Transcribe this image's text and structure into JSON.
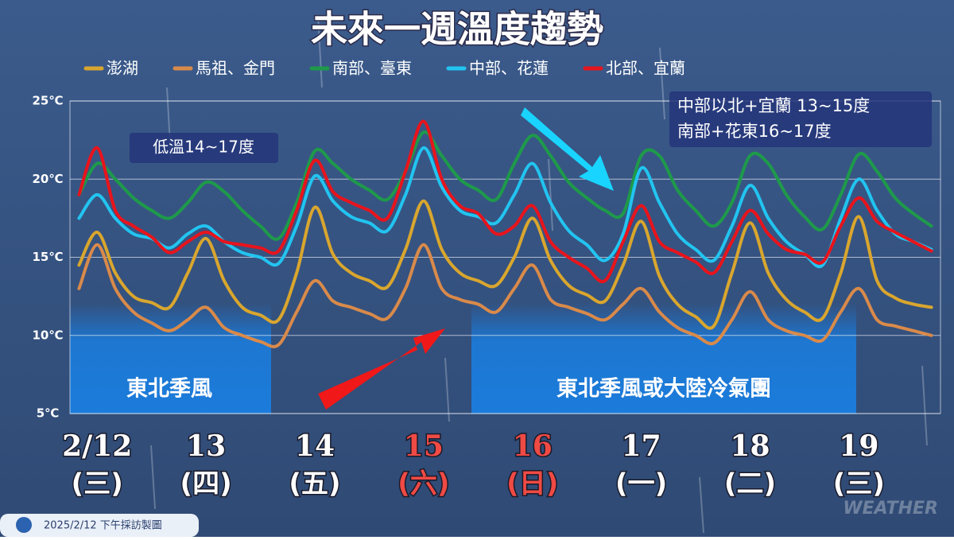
{
  "chart_data": {
    "type": "line",
    "title": "未來一週溫度趨勢",
    "categories": [
      null,
      "2/12",
      null,
      null,
      null,
      null,
      null,
      "13",
      null,
      null,
      null,
      null,
      null,
      "14",
      null,
      null,
      null,
      null,
      null,
      "15",
      null,
      null,
      null,
      null,
      null,
      "16",
      null,
      null,
      null,
      null,
      null,
      "17",
      null,
      null,
      null,
      null,
      null,
      "18",
      null,
      null,
      null,
      null,
      null,
      "19",
      null,
      null,
      null,
      null
    ],
    "weekdays": [
      null,
      "(三)",
      null,
      null,
      null,
      null,
      null,
      "(四)",
      null,
      null,
      null,
      null,
      null,
      "(五)",
      null,
      null,
      null,
      null,
      null,
      "(六)",
      null,
      null,
      null,
      null,
      null,
      "(日)",
      null,
      null,
      null,
      null,
      null,
      "(一)",
      null,
      null,
      null,
      null,
      null,
      "(二)",
      null,
      null,
      null,
      null,
      null,
      "(三)",
      null,
      null,
      null,
      null
    ],
    "highlight_indices": [
      19,
      25
    ],
    "highlight_color": "#ef4a44",
    "series": [
      {
        "name": "澎湖",
        "color": "#d9a62e",
        "values": [
          14.5,
          16.6,
          14,
          12.5,
          12.1,
          11.8,
          14,
          16.2,
          13.5,
          11.8,
          11.3,
          11,
          14,
          18.2,
          15.2,
          14,
          13.5,
          13.1,
          15.5,
          18.6,
          15.5,
          14,
          13.5,
          13.2,
          15,
          17.5,
          14.8,
          13.2,
          12.6,
          12.2,
          14.5,
          17.3,
          13.8,
          12,
          11.2,
          10.6,
          14,
          17.2,
          14,
          12.3,
          11.5,
          11.1,
          14,
          17.6,
          13.5,
          12.4,
          12,
          11.8
        ]
      },
      {
        "name": "馬祖、金門",
        "color": "#d98a4a",
        "values": [
          13,
          15.8,
          13,
          11.5,
          10.8,
          10.3,
          11,
          11.8,
          10.5,
          10,
          9.6,
          9.4,
          11.5,
          13.5,
          12.2,
          11.8,
          11.4,
          11.1,
          13,
          15.8,
          13,
          12.3,
          12,
          11.5,
          13,
          14.5,
          12.3,
          11.8,
          11.4,
          11,
          12,
          13,
          11.5,
          10.5,
          10,
          9.5,
          11,
          12.8,
          11,
          10.3,
          10,
          9.7,
          11.5,
          13,
          11,
          10.6,
          10.3,
          10
        ]
      },
      {
        "name": "南部、臺東",
        "color": "#1e9a4a",
        "values": [
          19,
          21,
          20,
          18.8,
          18,
          17.5,
          18.5,
          19.8,
          19.2,
          18,
          17,
          16.2,
          18.5,
          21.8,
          21,
          20,
          19.3,
          18.7,
          20.5,
          23,
          21.5,
          20,
          19.3,
          18.7,
          21,
          22.8,
          21.5,
          19.8,
          18.8,
          18,
          17.8,
          21.5,
          21.5,
          19.3,
          18,
          17,
          18.5,
          21.5,
          21,
          19,
          17.6,
          16.8,
          19,
          21.6,
          20.5,
          18.8,
          17.8,
          17
        ]
      },
      {
        "name": "中部、花蓮",
        "color": "#22c4f0",
        "values": [
          17.5,
          19,
          17.5,
          16.5,
          16.2,
          15.6,
          16.5,
          17,
          16,
          15.3,
          15,
          14.6,
          17,
          20.2,
          18.6,
          17.6,
          17.2,
          16.7,
          19,
          22,
          19.5,
          18,
          17.6,
          17.2,
          19,
          21,
          18.5,
          16.7,
          15.8,
          14.8,
          16.5,
          20.7,
          18.5,
          16.5,
          15.5,
          14.8,
          17,
          19.6,
          17.5,
          16,
          15.2,
          14.5,
          17.5,
          20,
          18,
          16.5,
          16,
          15.5
        ]
      },
      {
        "name": "北部、宜蘭",
        "color": "#e8141c",
        "values": [
          19,
          22,
          18,
          17,
          16.3,
          15.3,
          16,
          16.6,
          16,
          15.8,
          15.6,
          15.4,
          18,
          21.2,
          19.2,
          18.5,
          18,
          17.5,
          20.5,
          23.7,
          20,
          18.3,
          17.8,
          16.5,
          17,
          18.3,
          16,
          15,
          14.3,
          13.5,
          16,
          18.3,
          16,
          15.3,
          14.7,
          14,
          16,
          18,
          16.5,
          15.5,
          15.2,
          14.7,
          17,
          18.8,
          17.3,
          16.6,
          16,
          15.4
        ]
      }
    ],
    "ylim": [
      5,
      25
    ],
    "yticks": [
      {
        "value": 5,
        "label": "5℃"
      },
      {
        "value": 10,
        "label": "10℃"
      },
      {
        "value": 15,
        "label": "15℃"
      },
      {
        "value": 20,
        "label": "20℃"
      },
      {
        "value": 25,
        "label": "25℃"
      }
    ],
    "grid": true,
    "annotations": {
      "low": "低溫14~17度",
      "box_line1": "中部以北+宜蘭 13~15度",
      "box_line2": "南部+花東16~17度",
      "band1": "東北季風",
      "band2": "東北季風或大陸冷氣團"
    },
    "footer": "2025/2/12 下午採訪製圖",
    "watermark": "WEATHER"
  }
}
